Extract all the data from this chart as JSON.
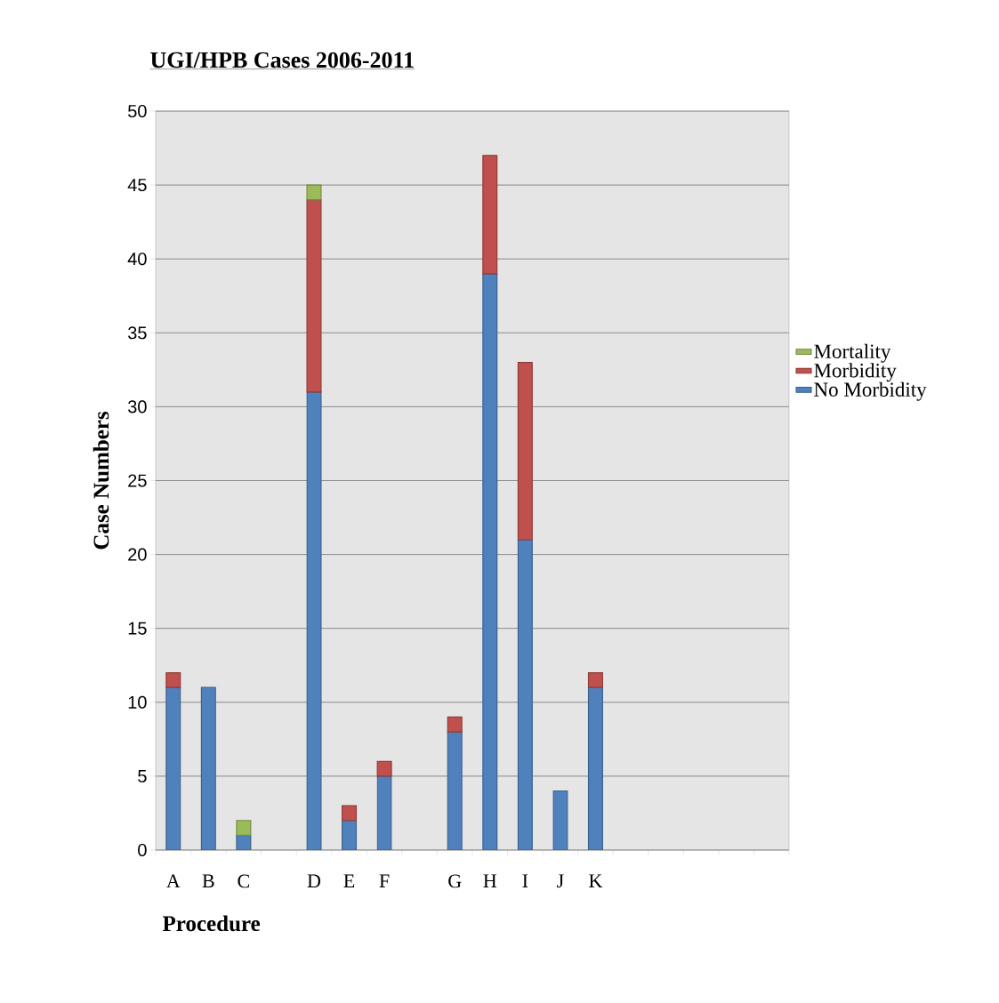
{
  "chart_data": {
    "type": "bar",
    "stacked": true,
    "title": "UGI/HPB Cases 2006-2011",
    "xlabel": "Procedure",
    "ylabel": "Case Numbers",
    "categories": [
      "A",
      "B",
      "C",
      null,
      "D",
      "E",
      "F",
      null,
      "G",
      "H",
      "I",
      "J",
      "K",
      null,
      null,
      null,
      null,
      null
    ],
    "series": [
      {
        "name": "No Morbidity",
        "color": "#4f81bd",
        "values": [
          11,
          11,
          1,
          null,
          31,
          2,
          5,
          null,
          8,
          39,
          21,
          4,
          11,
          null,
          null,
          null,
          null,
          null
        ]
      },
      {
        "name": "Morbidity",
        "color": "#c0504d",
        "values": [
          1,
          null,
          null,
          null,
          13,
          1,
          1,
          null,
          1,
          8,
          12,
          null,
          1,
          null,
          null,
          null,
          null,
          null
        ]
      },
      {
        "name": "Mortality",
        "color": "#9bbb59",
        "values": [
          null,
          null,
          1,
          null,
          1,
          null,
          null,
          null,
          null,
          null,
          null,
          null,
          null,
          null,
          null,
          null,
          null,
          null
        ]
      }
    ],
    "ylim": [
      0,
      50
    ],
    "yticks": [
      0,
      5,
      10,
      15,
      20,
      25,
      30,
      35,
      40,
      45,
      50
    ],
    "grid": "y",
    "legend": "right"
  }
}
